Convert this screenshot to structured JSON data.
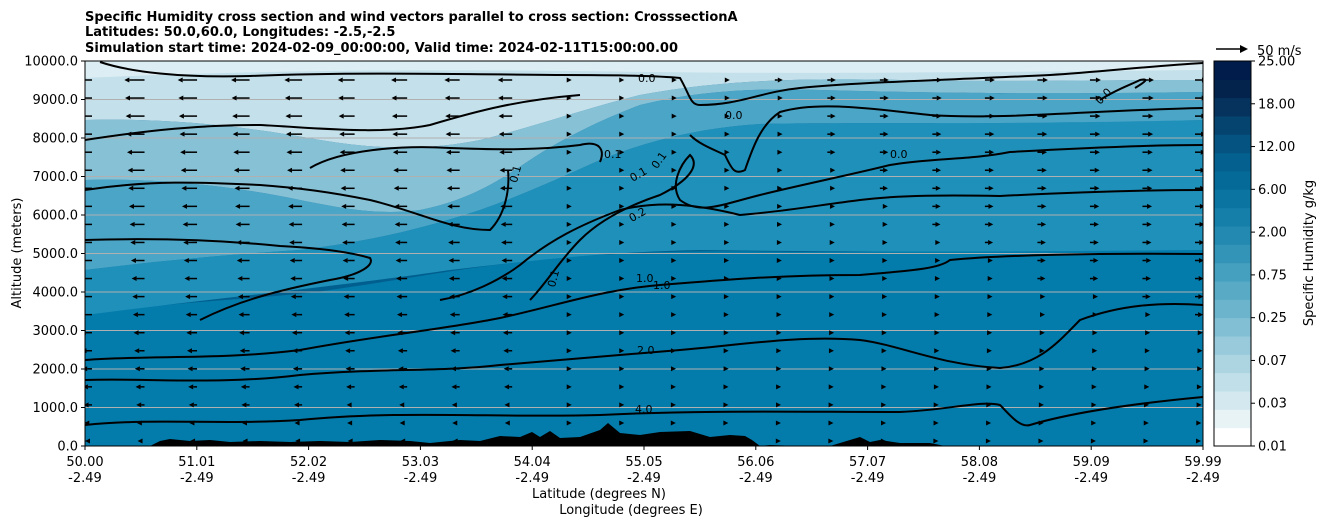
{
  "chart_data": {
    "type": "contourf",
    "title_lines": [
      "Specific Humidity cross section and wind vectors parallel to cross section: CrosssectionA",
      "Latitudes: 50.0,60.0, Longitudes: -2.5,-2.5",
      "Simulation start time: 2024-02-09_00:00:00, Valid time: 2024-02-11T15:00:00.00"
    ],
    "ylabel": "Altitude (meters)",
    "xlabel_lines": [
      "Latitude (degrees N)",
      "Longitude (degrees E)"
    ],
    "ylim": [
      0,
      10000
    ],
    "y_ticks": [
      0,
      1000,
      2000,
      3000,
      4000,
      5000,
      6000,
      7000,
      8000,
      9000,
      10000
    ],
    "y_tick_labels": [
      "0.0",
      "1000.0",
      "2000.0",
      "3000.0",
      "4000.0",
      "5000.0",
      "6000.0",
      "7000.0",
      "8000.0",
      "9000.0",
      "10000.0"
    ],
    "grid": "horizontal",
    "x_ticks": [
      {
        "lat": "50.00",
        "lon": "-2.49"
      },
      {
        "lat": "51.01",
        "lon": "-2.49"
      },
      {
        "lat": "52.02",
        "lon": "-2.49"
      },
      {
        "lat": "53.03",
        "lon": "-2.49"
      },
      {
        "lat": "54.04",
        "lon": "-2.49"
      },
      {
        "lat": "55.05",
        "lon": "-2.49"
      },
      {
        "lat": "56.06",
        "lon": "-2.49"
      },
      {
        "lat": "57.07",
        "lon": "-2.49"
      },
      {
        "lat": "58.08",
        "lon": "-2.49"
      },
      {
        "lat": "59.09",
        "lon": "-2.49"
      },
      {
        "lat": "59.99",
        "lon": "-2.49"
      }
    ],
    "colorbar": {
      "label": "Specific Humidity g/kg",
      "tick_labels": [
        "0.01",
        "0.03",
        "0.07",
        "0.25",
        "0.75",
        "2.00",
        "6.00",
        "12.00",
        "18.00",
        "25.00"
      ],
      "levels": 20,
      "colors": [
        "#ffffff",
        "#e8f3f6",
        "#d4e9ef",
        "#c1dfe8",
        "#add5e1",
        "#98cadb",
        "#82bfd4",
        "#6cb4cc",
        "#58aac5",
        "#459fbe",
        "#3394b7",
        "#2489b0",
        "#157ea9",
        "#0b74a1",
        "#066a98",
        "#04608e",
        "#055380",
        "#064470",
        "#05335e",
        "#03234c",
        "#011b4b"
      ]
    },
    "contour_labels": [
      "0.0",
      "0.0",
      "0.0",
      "0.0",
      "0.1",
      "0.1",
      "0.1",
      "0.1",
      "0.1",
      "0.2",
      "1.0",
      "1.0",
      "2.0",
      "4.0"
    ],
    "vector_key": {
      "label": "50 m/s",
      "speed": 50
    },
    "wind_direction_summary": "southward (left) at 54.0N and below, northward (right) beyond"
  }
}
